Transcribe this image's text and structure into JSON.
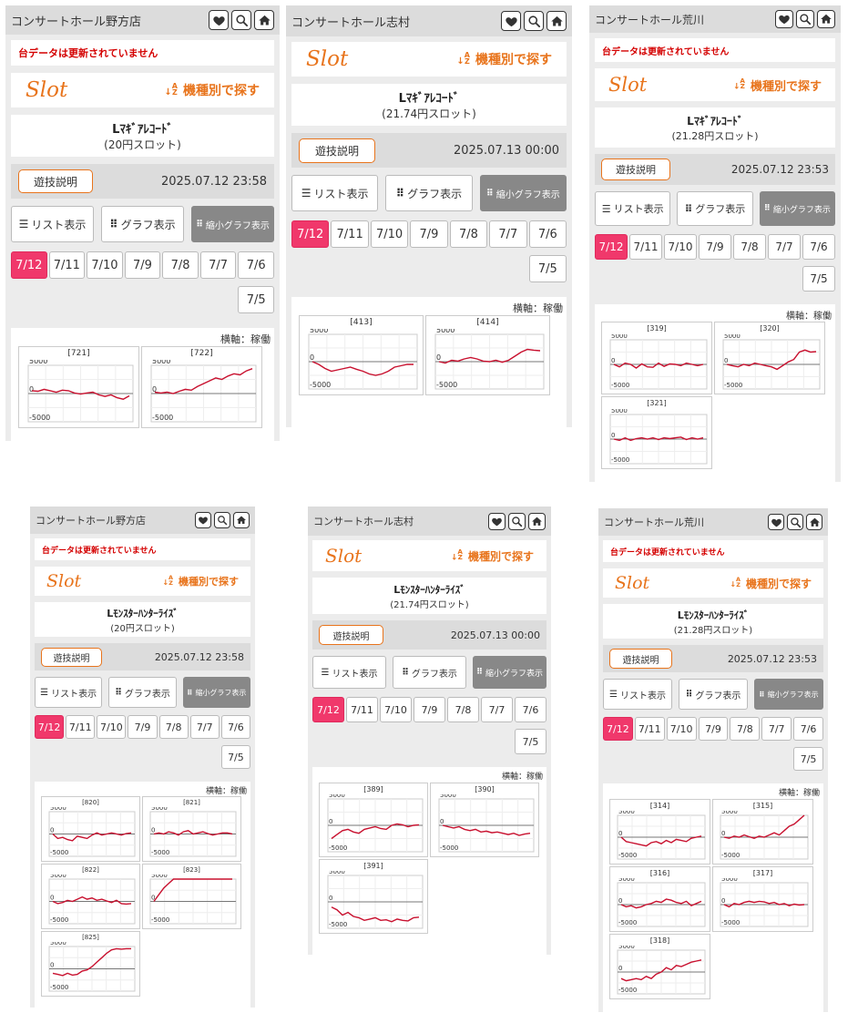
{
  "icons": {
    "favorite": "heart-icon",
    "search": "search-icon",
    "home": "home-icon",
    "list": "list-icon",
    "graph": "grid-icon",
    "sort": "az-sort-icon"
  },
  "colors": {
    "accent": "#e8741c",
    "selected_date": "#f0386b",
    "line": "#c8102e",
    "warning": "#d40000"
  },
  "common": {
    "warning": "台データは更新されていません",
    "slot_label": "Slot",
    "search_label": "機種別で探す",
    "explain_button": "遊技説明",
    "list_view": "リスト表示",
    "graph_view": "グラフ表示",
    "mini_graph_view": "縮小グラフ表示",
    "axis_note": "横軸：稼働",
    "y_top": "5000",
    "y_mid": "0",
    "y_bottom": "-5000",
    "dates": [
      "7/12",
      "7/11",
      "7/10",
      "7/9",
      "7/8",
      "7/7",
      "7/6",
      "7/5"
    ]
  },
  "panels": [
    {
      "hall": "コンサートホール野方店",
      "warning": true,
      "machine": "Lﾏｷﾞｱﾚｺｰﾄﾞ",
      "rate": "(20円スロット)",
      "datetime": "2025.07.12 23:58",
      "selected_date": "7/12",
      "graphs": [
        {
          "id": "[721]",
          "values": [
            0.1,
            0.08,
            0.15,
            0.1,
            0.05,
            0.12,
            0.1,
            0.02,
            -0.02,
            0.02,
            0.05,
            -0.05,
            -0.1,
            -0.05,
            -0.15,
            -0.2,
            -0.08
          ]
        },
        {
          "id": "[722]",
          "values": [
            0.05,
            0.02,
            0.05,
            0.0,
            0.08,
            0.15,
            0.12,
            0.25,
            0.35,
            0.45,
            0.55,
            0.5,
            0.62,
            0.7,
            0.66,
            0.8,
            0.88
          ]
        }
      ]
    },
    {
      "hall": "コンサートホール志村",
      "warning": false,
      "machine": "Lﾏｷﾞｱﾚｺｰﾄﾞ",
      "rate": "(21.74円スロット)",
      "datetime": "2025.07.13 00:00",
      "selected_date": "7/12",
      "graphs": [
        {
          "id": "[413]",
          "values": [
            0.0,
            -0.1,
            -0.25,
            -0.35,
            -0.3,
            -0.25,
            -0.2,
            -0.28,
            -0.35,
            -0.45,
            -0.5,
            -0.45,
            -0.35,
            -0.2,
            -0.15,
            -0.1,
            -0.1
          ]
        },
        {
          "id": "[414]",
          "values": [
            0.0,
            -0.05,
            0.05,
            0.02,
            0.1,
            0.15,
            0.1,
            0.02,
            0.0,
            0.05,
            -0.02,
            0.05,
            0.2,
            0.35,
            0.45,
            0.42,
            0.4
          ]
        }
      ]
    },
    {
      "hall": "コンサートホール荒川",
      "warning": true,
      "machine": "Lﾏｷﾞｱﾚｺｰﾄﾞ",
      "rate": "(21.28円スロット)",
      "datetime": "2025.07.12 23:53",
      "selected_date": "7/12",
      "graphs": [
        {
          "id": "[319]",
          "values": [
            0.0,
            -0.1,
            0.05,
            0.0,
            -0.15,
            0.02,
            -0.1,
            -0.12,
            0.05,
            -0.08,
            0.02,
            0.0,
            -0.05,
            0.05,
            0.0,
            -0.05,
            0.0
          ]
        },
        {
          "id": "[320]",
          "values": [
            0.0,
            -0.05,
            -0.1,
            0.0,
            -0.05,
            0.05,
            0.0,
            -0.05,
            -0.1,
            -0.2,
            -0.05,
            0.1,
            0.2,
            0.5,
            0.58,
            0.5,
            0.52
          ]
        },
        {
          "id": "[321]",
          "values": [
            0.0,
            -0.05,
            0.05,
            -0.05,
            0.02,
            0.05,
            0.0,
            0.05,
            -0.02,
            0.05,
            0.02,
            0.05,
            0.08,
            -0.02,
            0.05,
            0.0,
            0.05
          ]
        }
      ]
    },
    {
      "hall": "コンサートホール野方店",
      "warning": true,
      "machine": "Lﾓﾝｽﾀｰﾊﾝﾀｰﾗｲｽﾞ",
      "rate": "(20円スロット)",
      "datetime": "2025.07.12 23:58",
      "selected_date": "7/12",
      "graphs": [
        {
          "id": "[820]",
          "values": [
            0.0,
            -0.2,
            -0.15,
            -0.25,
            -0.3,
            -0.1,
            -0.15,
            -0.2,
            -0.05,
            0.05,
            -0.05,
            0.0,
            0.05,
            0.0,
            -0.05,
            0.02,
            0.05
          ]
        },
        {
          "id": "[821]",
          "values": [
            0.0,
            0.05,
            0.0,
            0.1,
            0.05,
            -0.05,
            0.1,
            0.15,
            0.0,
            0.05,
            0.1,
            0.02,
            -0.05,
            0.0,
            0.05,
            0.05,
            0.0
          ]
        },
        {
          "id": "[822]",
          "values": [
            0.0,
            -0.1,
            -0.05,
            0.05,
            0.0,
            0.1,
            0.2,
            0.1,
            0.15,
            0.05,
            0.1,
            0.02,
            -0.05,
            0.05,
            -0.1,
            -0.12,
            -0.1
          ]
        },
        {
          "id": "[823]",
          "values": [
            0.0,
            0.3,
            0.6,
            0.8,
            1.0,
            1.2,
            1.3,
            1.4,
            1.5,
            1.5,
            1.5,
            1.5,
            1.5,
            1.5,
            1.5,
            1.5,
            1.5
          ]
        },
        {
          "id": "[825]",
          "values": [
            -0.2,
            -0.25,
            -0.3,
            -0.2,
            -0.28,
            -0.25,
            -0.1,
            -0.05,
            0.1,
            0.3,
            0.5,
            0.7,
            0.85,
            0.9,
            0.88,
            0.9,
            0.9
          ]
        }
      ]
    },
    {
      "hall": "コンサートホール志村",
      "warning": false,
      "machine": "Lﾓﾝｽﾀｰﾊﾝﾀｰﾗｲｽﾞ",
      "rate": "(21.74円スロット)",
      "datetime": "2025.07.13 00:00",
      "selected_date": "7/12",
      "graphs": [
        {
          "id": "[389]",
          "values": [
            -0.5,
            -0.35,
            -0.2,
            -0.15,
            -0.25,
            -0.3,
            -0.15,
            -0.1,
            -0.05,
            -0.12,
            -0.15,
            0.0,
            0.05,
            0.02,
            -0.05,
            0.0,
            0.02
          ]
        },
        {
          "id": "[390]",
          "values": [
            0.0,
            -0.05,
            -0.1,
            -0.05,
            -0.15,
            -0.2,
            -0.15,
            -0.25,
            -0.22,
            -0.28,
            -0.25,
            -0.3,
            -0.35,
            -0.3,
            -0.38,
            -0.33,
            -0.3
          ]
        },
        {
          "id": "[391]",
          "values": [
            -0.2,
            -0.3,
            -0.5,
            -0.4,
            -0.55,
            -0.6,
            -0.7,
            -0.65,
            -0.6,
            -0.7,
            -0.68,
            -0.75,
            -0.65,
            -0.7,
            -0.72,
            -0.6,
            -0.58
          ]
        }
      ]
    },
    {
      "hall": "コンサートホール荒川",
      "warning": true,
      "machine": "Lﾓﾝｽﾀｰﾊﾝﾀｰﾗｲｽﾞ",
      "rate": "(21.28円スロット)",
      "datetime": "2025.07.12 23:53",
      "selected_date": "7/12",
      "graphs": [
        {
          "id": "[314]",
          "values": [
            0.0,
            -0.2,
            -0.25,
            -0.3,
            -0.35,
            -0.4,
            -0.25,
            -0.2,
            -0.3,
            -0.15,
            -0.25,
            -0.1,
            -0.15,
            -0.2,
            -0.05,
            0.0,
            0.05
          ]
        },
        {
          "id": "[315]",
          "values": [
            0.0,
            -0.05,
            0.05,
            0.0,
            0.1,
            0.02,
            -0.05,
            0.05,
            0.0,
            0.1,
            0.2,
            0.1,
            0.3,
            0.5,
            0.6,
            0.8,
            1.1
          ]
        },
        {
          "id": "[316]",
          "values": [
            0.0,
            -0.1,
            -0.05,
            -0.15,
            -0.1,
            0.0,
            0.05,
            0.15,
            0.1,
            0.25,
            0.2,
            0.1,
            0.05,
            0.15,
            -0.05,
            0.05,
            0.15
          ]
        },
        {
          "id": "[317]",
          "values": [
            0.0,
            -0.1,
            0.05,
            0.0,
            0.1,
            0.15,
            0.1,
            0.15,
            0.12,
            0.05,
            0.1,
            0.0,
            0.05,
            -0.05,
            0.02,
            -0.02,
            0.0
          ]
        },
        {
          "id": "[318]",
          "values": [
            -0.3,
            -0.4,
            -0.35,
            -0.3,
            -0.35,
            -0.2,
            -0.3,
            -0.1,
            0.0,
            0.2,
            0.1,
            0.3,
            0.25,
            0.35,
            0.45,
            0.5,
            0.55
          ]
        }
      ]
    }
  ]
}
